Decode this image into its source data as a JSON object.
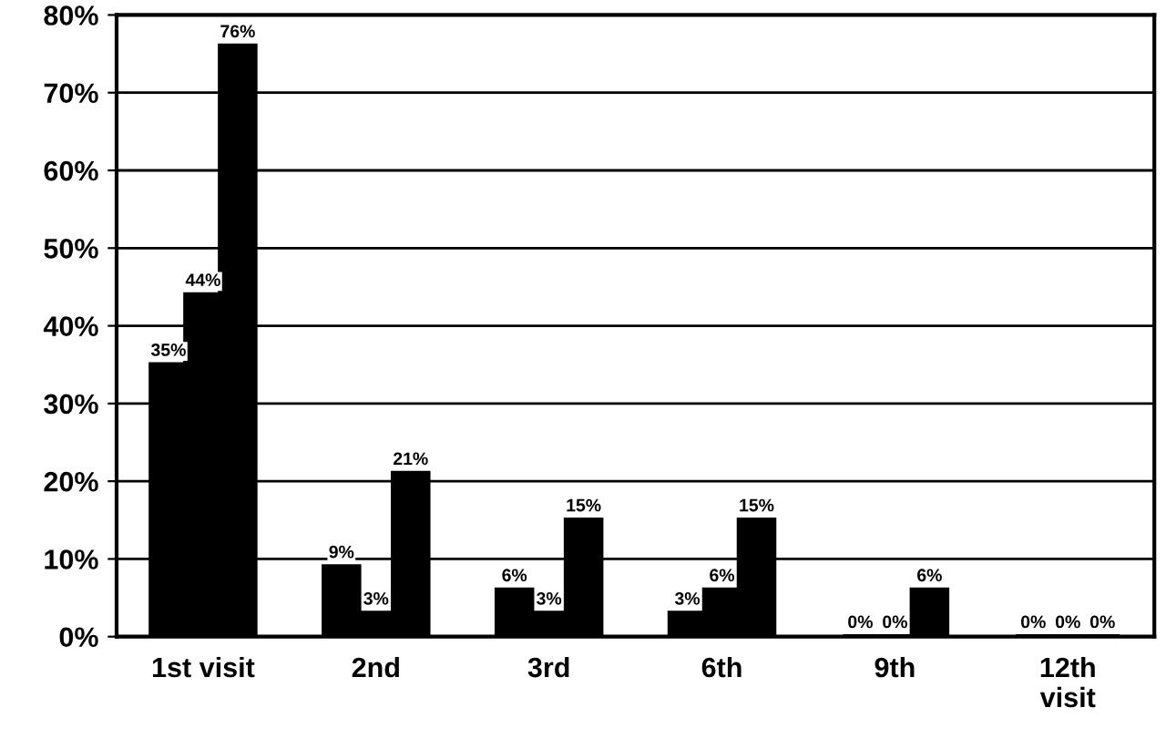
{
  "chart_data": {
    "type": "bar",
    "categories": [
      "1st visit",
      "2nd",
      "3rd",
      "6th",
      "9th",
      "12th\nvisit"
    ],
    "series": [
      {
        "color": "#000000",
        "values": [
          35,
          9,
          6,
          3,
          0,
          0
        ],
        "value_labels": [
          "35%",
          "9%",
          "6%",
          "3%",
          "0%",
          "0%"
        ]
      },
      {
        "color": "#000000",
        "values": [
          44,
          3,
          3,
          6,
          0,
          0
        ],
        "value_labels": [
          "44%",
          "3%",
          "3%",
          "6%",
          "0%",
          "0%"
        ]
      },
      {
        "color": "#000000",
        "values": [
          76,
          21,
          15,
          15,
          6,
          0
        ],
        "value_labels": [
          "76%",
          "21%",
          "15%",
          "15%",
          "6%",
          "0%"
        ]
      }
    ],
    "ylim": [
      0,
      80
    ],
    "yticks": [
      {
        "value": 0,
        "label": "0%"
      },
      {
        "value": 10,
        "label": "10%"
      },
      {
        "value": 20,
        "label": "20%"
      },
      {
        "value": 30,
        "label": "30%"
      },
      {
        "value": 40,
        "label": "40%"
      },
      {
        "value": 50,
        "label": "50%"
      },
      {
        "value": 60,
        "label": "60%"
      },
      {
        "value": 70,
        "label": "70%"
      },
      {
        "value": 80,
        "label": "80%"
      }
    ],
    "grid": "y"
  }
}
